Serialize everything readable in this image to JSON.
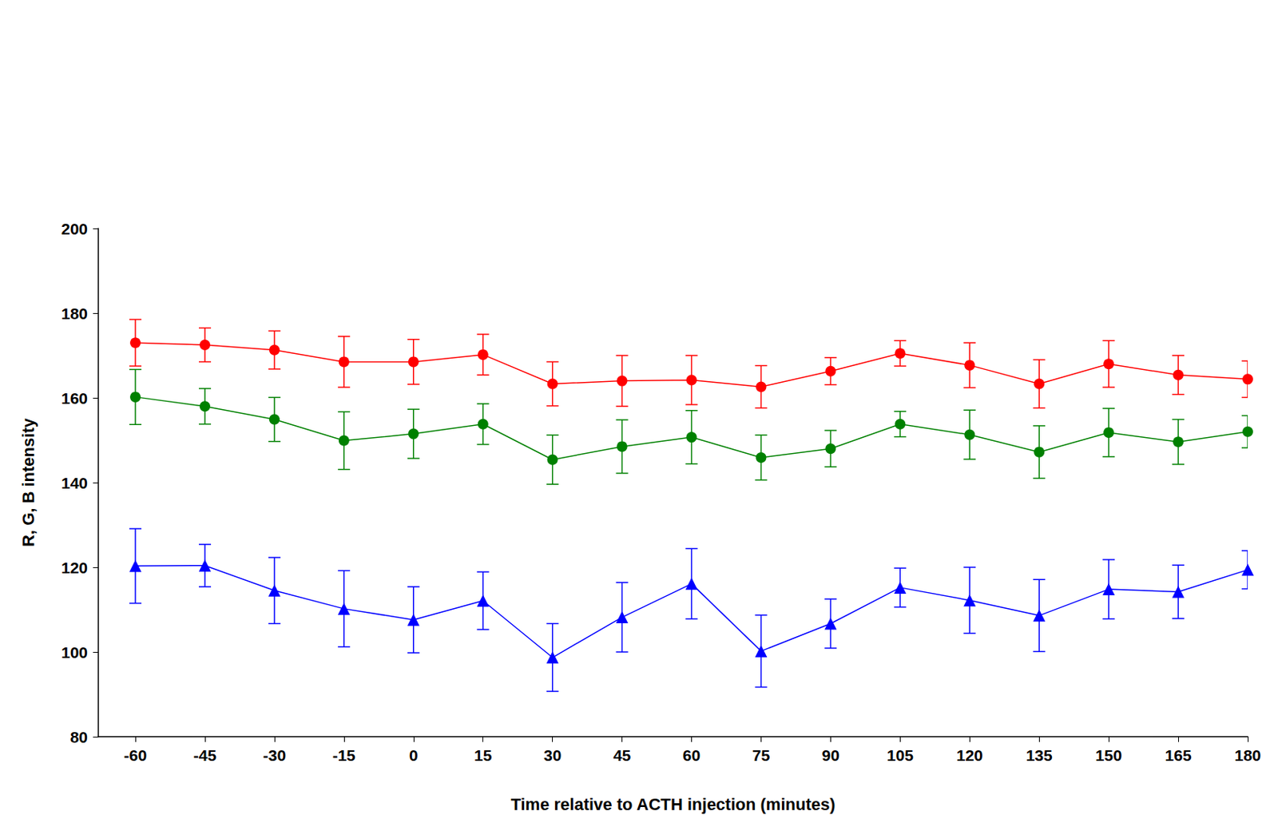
{
  "chart_data": {
    "type": "line",
    "x_label": "Time relative to ACTH injection (minutes)",
    "y_label": "R, G, B intensity",
    "x": [
      -60,
      -45,
      -30,
      -15,
      0,
      15,
      30,
      45,
      60,
      75,
      90,
      105,
      120,
      135,
      150,
      165,
      180
    ],
    "xlim": [
      -68,
      180
    ],
    "xticks": [
      -60,
      -45,
      -30,
      -15,
      0,
      15,
      30,
      45,
      60,
      75,
      90,
      105,
      120,
      135,
      150,
      165,
      180
    ],
    "ylim": [
      80,
      200
    ],
    "yticks": [
      80,
      100,
      120,
      140,
      160,
      180,
      200
    ],
    "grid": false,
    "series": [
      {
        "color": "#ff0000",
        "marker": "circle",
        "values": [
          173,
          172.5,
          171.3,
          168.5,
          168.5,
          170.2,
          163.3,
          164,
          164.2,
          162.6,
          166.3,
          170.5,
          167.7,
          163.3,
          168,
          165.4,
          164.4
        ],
        "errors": [
          5.5,
          4,
          4.5,
          6,
          5.3,
          4.8,
          5.2,
          6,
          5.8,
          5,
          3.2,
          3,
          5.3,
          5.7,
          5.5,
          4.6,
          4.3
        ]
      },
      {
        "color": "#008000",
        "marker": "circle",
        "values": [
          160.2,
          158,
          154.9,
          149.9,
          151.5,
          153.8,
          145.4,
          148.5,
          150.7,
          145.9,
          148,
          153.8,
          151.3,
          147.2,
          151.8,
          149.6,
          152
        ],
        "errors": [
          6.5,
          4.2,
          5.2,
          6.8,
          5.8,
          4.8,
          5.8,
          6.3,
          6.3,
          5.3,
          4.3,
          3,
          5.8,
          6.2,
          5.7,
          5.3,
          3.8
        ]
      },
      {
        "color": "#0000ff",
        "marker": "triangle",
        "values": [
          120.3,
          120.4,
          114.5,
          110.2,
          107.6,
          112.1,
          98.7,
          108.2,
          116.1,
          100.2,
          106.7,
          115.2,
          112.2,
          108.6,
          114.8,
          114.2,
          119.4
        ],
        "errors": [
          8.8,
          5,
          7.8,
          9,
          7.8,
          6.8,
          8,
          8.2,
          8.3,
          8.5,
          5.8,
          4.6,
          7.8,
          8.5,
          7,
          6.3,
          4.5
        ]
      }
    ]
  }
}
